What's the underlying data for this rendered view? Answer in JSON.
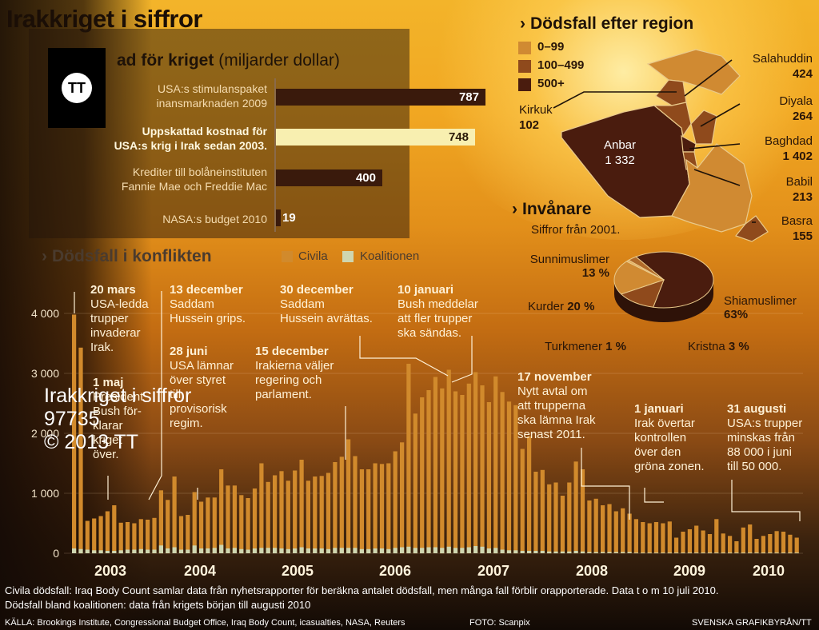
{
  "title": "Irakkriget i siffror",
  "cost_section": {
    "title_bold": "ad för kriget",
    "title_normal": "(miljarder dollar)",
    "items": [
      {
        "label_line1": "USA:s stimulanspaket",
        "label_line2": "inansmarknaden 2009",
        "value": 787,
        "highlight": false
      },
      {
        "label_line1": "Uppskattad kostnad för",
        "label_line2": "USA:s krig i  Irak sedan 2003.",
        "value": 748,
        "highlight": true
      },
      {
        "label_line1": "Krediter till bolåneinstituten",
        "label_line2": "Fannie Mae och Freddie Mac",
        "value": 400,
        "highlight": false
      },
      {
        "label_line1": "NASA:s budget 2010",
        "label_line2": "",
        "value": 19,
        "highlight": false
      }
    ]
  },
  "deaths_section": {
    "title": "Dödsfall i konflikten",
    "legend": [
      {
        "label": "Civila",
        "color": "#d18a2c"
      },
      {
        "label": "Koalitionen",
        "color": "#cfd6b0"
      }
    ]
  },
  "chart_data": {
    "type": "bar",
    "title": "Dödsfall i konflikten",
    "xlabel": "",
    "ylabel": "",
    "ylim": [
      0,
      4000
    ],
    "y_ticks": [
      "0",
      "1 000",
      "2 000",
      "3 000",
      "4 000"
    ],
    "years": [
      "2003",
      "2004",
      "2005",
      "2006",
      "2007",
      "2008",
      "2009",
      "2010"
    ],
    "series": [
      {
        "name": "Civila",
        "values": [
          3980,
          3430,
          540,
          580,
          620,
          700,
          800,
          510,
          520,
          500,
          570,
          560,
          590,
          1050,
          890,
          1280,
          620,
          640,
          1020,
          860,
          930,
          930,
          1400,
          1130,
          1130,
          970,
          920,
          1080,
          1500,
          1190,
          1300,
          1370,
          1210,
          1380,
          1560,
          1210,
          1280,
          1290,
          1340,
          1520,
          1610,
          1900,
          1620,
          1400,
          1400,
          1500,
          1490,
          1500,
          1700,
          1850,
          3160,
          2330,
          2600,
          2720,
          2940,
          2750,
          3060,
          2700,
          2640,
          2830,
          3020,
          2800,
          2520,
          2950,
          2690,
          2530,
          2470,
          1740,
          1950,
          1360,
          1390,
          1150,
          1180,
          960,
          1180,
          1530,
          1400,
          880,
          910,
          800,
          820,
          700,
          750,
          660,
          570,
          520,
          500,
          520,
          500,
          530,
          260,
          360,
          400,
          460,
          380,
          320,
          570,
          330,
          290,
          200,
          430,
          480,
          240,
          290,
          320,
          370,
          360,
          310,
          260
        ]
      },
      {
        "name": "Koalitionen",
        "values": [
          80,
          70,
          60,
          50,
          50,
          40,
          40,
          50,
          60,
          60,
          70,
          60,
          60,
          130,
          80,
          100,
          60,
          60,
          130,
          80,
          80,
          90,
          140,
          80,
          90,
          70,
          60,
          80,
          90,
          90,
          90,
          80,
          70,
          80,
          100,
          80,
          80,
          80,
          70,
          90,
          90,
          90,
          90,
          70,
          70,
          80,
          80,
          70,
          90,
          100,
          110,
          90,
          90,
          100,
          100,
          90,
          110,
          90,
          90,
          100,
          120,
          110,
          80,
          90,
          60,
          50,
          50,
          40,
          40,
          40,
          40,
          30,
          30,
          30,
          30,
          40,
          30,
          20,
          20,
          20,
          20,
          20,
          20,
          20,
          10,
          10,
          10,
          10,
          10,
          10,
          10,
          10,
          10,
          10,
          10,
          10,
          10,
          10,
          10,
          10,
          10,
          10,
          10,
          10,
          10,
          10,
          10,
          10,
          10
        ]
      }
    ],
    "annotations": [
      {
        "date": "20 mars",
        "text": [
          "USA-ledda",
          "trupper",
          "invaderar",
          "Irak."
        ]
      },
      {
        "date": "1 maj",
        "text": [
          "President",
          "Bush för-",
          "klarar",
          "kriget",
          "över."
        ]
      },
      {
        "date": "13 december",
        "text": [
          "Saddam",
          "Hussein grips."
        ]
      },
      {
        "date": "28 juni",
        "text": [
          "USA lämnar",
          "över styret",
          "till",
          "provisorisk",
          "regim."
        ]
      },
      {
        "date": "30 december",
        "text": [
          "Saddam",
          "Hussein avrättas."
        ]
      },
      {
        "date": "15 december",
        "text": [
          "Irakierna väljer",
          "regering och",
          "parlament."
        ]
      },
      {
        "date": "10 januari",
        "text": [
          "Bush meddelar",
          "att fler trupper",
          "ska sändas."
        ]
      },
      {
        "date": "17 november",
        "text": [
          "Nytt avtal om",
          "att trupperna",
          "ska lämna Irak",
          "senast 2011."
        ]
      },
      {
        "date": "1 januari",
        "text": [
          "Irak övertar",
          "kontrollen",
          "över den",
          "gröna zonen."
        ]
      },
      {
        "date": "31 augusti",
        "text": [
          "USA:s trupper",
          "minskas från",
          "88 000 i juni",
          "till 50 000."
        ]
      }
    ]
  },
  "region_section": {
    "title": "Dödsfall efter region",
    "legend": [
      {
        "label": "0–99",
        "color": "#d08a32"
      },
      {
        "label": "100–499",
        "color": "#8f4a1c"
      },
      {
        "label": "500+",
        "color": "#4a1c0e"
      }
    ],
    "regions": [
      {
        "name": "Salahuddin",
        "value": "424"
      },
      {
        "name": "Diyala",
        "value": "264"
      },
      {
        "name": "Baghdad",
        "value": "1 402"
      },
      {
        "name": "Babil",
        "value": "213"
      },
      {
        "name": "Basra",
        "value": "155"
      },
      {
        "name": "Kirkuk",
        "value": "102"
      },
      {
        "name": "Anbar",
        "value": "1 332"
      }
    ]
  },
  "population_section": {
    "title": "Invånare",
    "subtitle": "Siffror från 2001.",
    "slices": [
      {
        "name": "Shiamuslimer",
        "value": "63",
        "pct": "%",
        "color": "#4a1c0e"
      },
      {
        "name": "Sunnimuslimer",
        "value": "13",
        "pct": "%",
        "color": "#8f4a1c"
      },
      {
        "name": "Kurder",
        "value": "20",
        "pct": "%",
        "color": "#d08a32"
      },
      {
        "name": "Turkmener",
        "value": "1",
        "pct": "%",
        "color": "#e5b060"
      },
      {
        "name": "Kristna",
        "value": "3",
        "pct": "%",
        "color": "#b06a2a"
      }
    ]
  },
  "footer": {
    "line1": "Civila dödsfall: Iraq Body Count samlar data från nyhetsrapporter för beräkna antalet dödsfall, men många fall förblir orapporterade. Data t o m 10 juli 2010.",
    "line2": "Dödsfall bland koalitionen: data från krigets början till augusti 2010",
    "source": "KÄLLA: Brookings Institute, Congressional Budget Office, Iraq Body Count, icasualties, NASA, Reuters",
    "photo": "FOTO: Scanpix",
    "credit": "SVENSKA GRAFIKBYRÅN/TT"
  },
  "watermark": {
    "line1": "Irakkriget i siffror",
    "line2": "97735",
    "line3": "© 2013 TT"
  },
  "logo": {
    "text": "TT"
  }
}
